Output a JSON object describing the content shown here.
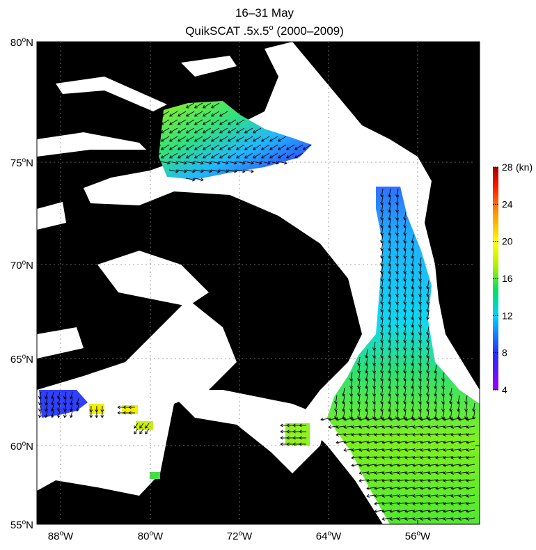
{
  "title": {
    "line1": "16–31 May",
    "line2_main": "QuikSCAT .5x.5",
    "line2_sup": "o",
    "line2_tail": " (2000–2009)"
  },
  "axes": {
    "y_ticks": [
      {
        "value": "80",
        "deg": "o",
        "hem": "N"
      },
      {
        "value": "75",
        "deg": "o",
        "hem": "N"
      },
      {
        "value": "70",
        "deg": "o",
        "hem": "N"
      },
      {
        "value": "65",
        "deg": "o",
        "hem": "N"
      },
      {
        "value": "60",
        "deg": "o",
        "hem": "N"
      },
      {
        "value": "55",
        "deg": "o",
        "hem": "N"
      }
    ],
    "x_ticks": [
      {
        "value": "88",
        "deg": "o",
        "hem": "W"
      },
      {
        "value": "80",
        "deg": "o",
        "hem": "W"
      },
      {
        "value": "72",
        "deg": "o",
        "hem": "W"
      },
      {
        "value": "64",
        "deg": "o",
        "hem": "W"
      },
      {
        "value": "56",
        "deg": "o",
        "hem": "W"
      }
    ]
  },
  "colorbar": {
    "unit": "(kn)",
    "ticks": [
      "28",
      "24",
      "20",
      "16",
      "12",
      "8",
      "4"
    ],
    "range": [
      4,
      28
    ],
    "colors": [
      "#9b00ff",
      "#2a2aff",
      "#00c8ff",
      "#00e060",
      "#aaf000",
      "#ffff00",
      "#ff9000",
      "#ff0000",
      "#a00000"
    ]
  },
  "colors": {
    "land": "#000000",
    "ice": "#ffffff",
    "arrow": "#000000"
  }
}
